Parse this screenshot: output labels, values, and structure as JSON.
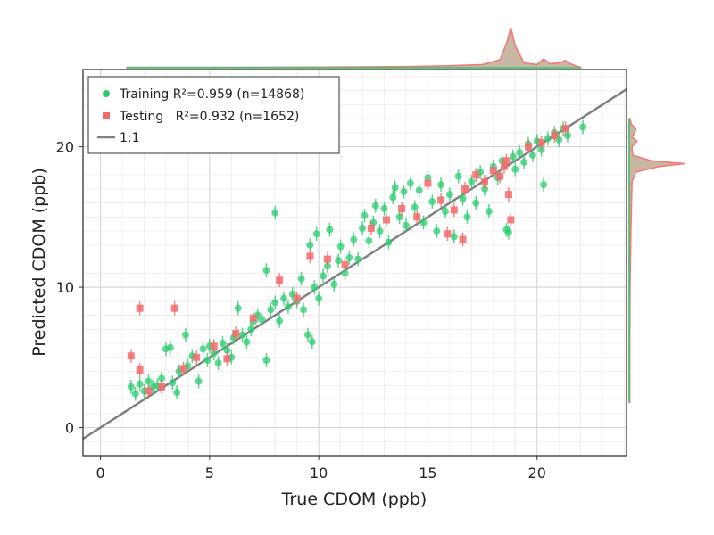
{
  "chart_data": {
    "type": "scatter",
    "xlabel": "True CDOM (ppb)",
    "ylabel": "Predicted CDOM (ppb)",
    "xlim": [
      -0.8,
      24.1
    ],
    "ylim": [
      -2.0,
      25.5
    ],
    "x_ticks": [
      0,
      5,
      10,
      15,
      20
    ],
    "y_ticks": [
      0,
      10,
      20
    ],
    "grid": true,
    "legend_position": "top-left",
    "colors": {
      "training": "#2ecc71",
      "testing": "#f26b6b",
      "identity": "#7f7f7f"
    },
    "legend": [
      {
        "label": "Training R²=0.959 (n=14868)",
        "marker": "circle",
        "color": "#2ecc71"
      },
      {
        "label": "Testing   R²=0.932 (n=1652)",
        "marker": "square",
        "color": "#f26b6b"
      },
      {
        "label": "1:1",
        "marker": "line",
        "color": "#7f7f7f"
      }
    ],
    "series": [
      {
        "name": "Training",
        "marker": "circle",
        "color": "#2ecc71",
        "points": [
          [
            1.4,
            2.9,
            0.5
          ],
          [
            1.6,
            2.4,
            0.5
          ],
          [
            1.8,
            3.1,
            0.5
          ],
          [
            2.0,
            2.6,
            0.5
          ],
          [
            2.2,
            3.3,
            0.5
          ],
          [
            2.4,
            2.9,
            0.5
          ],
          [
            2.6,
            3.0,
            0.5
          ],
          [
            2.8,
            3.5,
            0.5
          ],
          [
            3.0,
            5.6,
            0.5
          ],
          [
            3.2,
            5.7,
            0.5
          ],
          [
            3.3,
            3.2,
            0.5
          ],
          [
            3.5,
            2.5,
            0.5
          ],
          [
            3.6,
            4.0,
            0.5
          ],
          [
            3.9,
            6.6,
            0.5
          ],
          [
            4.0,
            4.4,
            0.5
          ],
          [
            4.2,
            5.1,
            0.5
          ],
          [
            4.5,
            3.3,
            0.5
          ],
          [
            4.7,
            5.6,
            0.5
          ],
          [
            4.9,
            4.8,
            0.5
          ],
          [
            5.0,
            5.8,
            0.5
          ],
          [
            5.2,
            5.3,
            0.5
          ],
          [
            5.4,
            4.6,
            0.5
          ],
          [
            5.6,
            6.0,
            0.5
          ],
          [
            5.8,
            5.5,
            0.5
          ],
          [
            6.0,
            5.0,
            0.5
          ],
          [
            6.1,
            6.4,
            0.5
          ],
          [
            6.3,
            8.5,
            0.5
          ],
          [
            6.5,
            6.6,
            0.5
          ],
          [
            6.7,
            6.1,
            0.5
          ],
          [
            6.9,
            7.0,
            0.5
          ],
          [
            7.0,
            7.5,
            0.5
          ],
          [
            7.2,
            8.0,
            0.5
          ],
          [
            7.4,
            7.7,
            0.5
          ],
          [
            7.6,
            4.8,
            0.5
          ],
          [
            7.6,
            11.2,
            0.5
          ],
          [
            7.8,
            8.4,
            0.5
          ],
          [
            8.0,
            8.9,
            0.5
          ],
          [
            8.0,
            15.3,
            0.5
          ],
          [
            8.2,
            7.6,
            0.5
          ],
          [
            8.4,
            9.2,
            0.5
          ],
          [
            8.6,
            8.6,
            0.5
          ],
          [
            8.8,
            9.5,
            0.5
          ],
          [
            9.0,
            9.0,
            0.5
          ],
          [
            9.2,
            10.6,
            0.5
          ],
          [
            9.3,
            8.4,
            0.5
          ],
          [
            9.5,
            6.6,
            0.5
          ],
          [
            9.6,
            13.0,
            0.5
          ],
          [
            9.7,
            6.1,
            0.5
          ],
          [
            9.8,
            10.0,
            0.5
          ],
          [
            9.9,
            13.8,
            0.5
          ],
          [
            10.0,
            9.2,
            0.5
          ],
          [
            10.2,
            10.8,
            0.5
          ],
          [
            10.4,
            11.5,
            0.5
          ],
          [
            10.5,
            14.1,
            0.5
          ],
          [
            10.7,
            10.2,
            0.5
          ],
          [
            10.9,
            11.9,
            0.5
          ],
          [
            11.0,
            12.9,
            0.5
          ],
          [
            11.2,
            11.0,
            0.5
          ],
          [
            11.4,
            12.1,
            0.5
          ],
          [
            11.6,
            13.4,
            0.5
          ],
          [
            11.8,
            12.0,
            0.5
          ],
          [
            12.0,
            14.2,
            0.5
          ],
          [
            12.1,
            15.1,
            0.5
          ],
          [
            12.3,
            13.3,
            0.5
          ],
          [
            12.5,
            14.6,
            0.5
          ],
          [
            12.6,
            15.8,
            0.5
          ],
          [
            12.8,
            14.0,
            0.5
          ],
          [
            13.0,
            15.6,
            0.5
          ],
          [
            13.2,
            13.2,
            0.5
          ],
          [
            13.4,
            16.4,
            0.5
          ],
          [
            13.5,
            17.1,
            0.5
          ],
          [
            13.7,
            15.0,
            0.5
          ],
          [
            13.9,
            16.8,
            0.5
          ],
          [
            14.0,
            14.4,
            0.5
          ],
          [
            14.2,
            17.4,
            0.5
          ],
          [
            14.4,
            15.7,
            0.5
          ],
          [
            14.6,
            16.9,
            0.5
          ],
          [
            14.8,
            14.6,
            0.5
          ],
          [
            15.0,
            17.8,
            0.5
          ],
          [
            15.2,
            16.1,
            0.5
          ],
          [
            15.4,
            14.0,
            0.5
          ],
          [
            15.6,
            17.3,
            0.5
          ],
          [
            15.8,
            15.4,
            0.5
          ],
          [
            16.0,
            16.6,
            0.5
          ],
          [
            16.2,
            13.6,
            0.5
          ],
          [
            16.4,
            17.9,
            0.5
          ],
          [
            16.6,
            16.3,
            0.5
          ],
          [
            16.8,
            15.0,
            0.5
          ],
          [
            17.0,
            17.5,
            0.5
          ],
          [
            17.2,
            16.0,
            0.5
          ],
          [
            17.4,
            18.2,
            0.5
          ],
          [
            17.6,
            17.0,
            0.5
          ],
          [
            17.8,
            15.4,
            0.5
          ],
          [
            18.0,
            18.6,
            0.5
          ],
          [
            18.2,
            17.8,
            0.5
          ],
          [
            18.4,
            19.0,
            0.5
          ],
          [
            18.6,
            14.1,
            0.5
          ],
          [
            18.7,
            13.9,
            0.5
          ],
          [
            18.9,
            19.3,
            0.5
          ],
          [
            19.0,
            18.4,
            0.5
          ],
          [
            19.2,
            19.6,
            0.5
          ],
          [
            19.4,
            18.9,
            0.5
          ],
          [
            19.6,
            20.2,
            0.5
          ],
          [
            19.8,
            19.4,
            0.5
          ],
          [
            20.0,
            20.4,
            0.5
          ],
          [
            20.2,
            19.8,
            0.5
          ],
          [
            20.3,
            17.3,
            0.5
          ],
          [
            20.5,
            20.6,
            0.5
          ],
          [
            20.8,
            21.0,
            0.5
          ],
          [
            21.0,
            20.5,
            0.5
          ],
          [
            21.2,
            21.3,
            0.5
          ],
          [
            21.4,
            20.8,
            0.5
          ],
          [
            22.1,
            21.4,
            0.5
          ]
        ]
      },
      {
        "name": "Testing",
        "marker": "square",
        "color": "#f26b6b",
        "points": [
          [
            1.4,
            5.1,
            0.5
          ],
          [
            1.8,
            4.1,
            0.5
          ],
          [
            1.8,
            8.5,
            0.5
          ],
          [
            2.2,
            2.6,
            0.5
          ],
          [
            2.8,
            2.9,
            0.5
          ],
          [
            3.4,
            8.5,
            0.5
          ],
          [
            3.8,
            4.2,
            0.5
          ],
          [
            4.4,
            5.0,
            0.5
          ],
          [
            5.2,
            5.8,
            0.5
          ],
          [
            5.8,
            4.9,
            0.5
          ],
          [
            6.2,
            6.7,
            0.5
          ],
          [
            7.0,
            7.8,
            0.5
          ],
          [
            8.2,
            10.5,
            0.5
          ],
          [
            9.0,
            9.2,
            0.5
          ],
          [
            9.6,
            12.2,
            0.5
          ],
          [
            10.4,
            12.0,
            0.5
          ],
          [
            11.2,
            11.6,
            0.5
          ],
          [
            12.4,
            14.2,
            0.5
          ],
          [
            13.1,
            14.8,
            0.5
          ],
          [
            13.8,
            15.6,
            0.5
          ],
          [
            14.5,
            15.0,
            0.5
          ],
          [
            15.0,
            17.4,
            0.5
          ],
          [
            15.6,
            16.2,
            0.5
          ],
          [
            16.2,
            15.5,
            0.5
          ],
          [
            16.7,
            17.0,
            0.5
          ],
          [
            17.2,
            18.0,
            0.5
          ],
          [
            17.6,
            17.5,
            0.5
          ],
          [
            18.0,
            18.3,
            0.5
          ],
          [
            18.3,
            17.9,
            0.5
          ],
          [
            18.5,
            18.6,
            0.5
          ],
          [
            18.6,
            19.0,
            0.5
          ],
          [
            18.7,
            16.6,
            0.5
          ],
          [
            18.8,
            14.8,
            0.5
          ],
          [
            19.6,
            20.0,
            0.5
          ],
          [
            20.2,
            20.3,
            0.5
          ],
          [
            20.8,
            20.8,
            0.5
          ],
          [
            21.3,
            21.3,
            0.5
          ],
          [
            16.6,
            13.4,
            0.5
          ],
          [
            15.9,
            13.8,
            0.5
          ]
        ]
      },
      {
        "name": "1:1",
        "type": "line",
        "color": "#7f7f7f",
        "x": [
          -0.8,
          24.1
        ],
        "y": [
          -0.8,
          24.1
        ]
      }
    ],
    "marginal_top": {
      "x": [
        1.2,
        5,
        10,
        14,
        16,
        17.5,
        18.3,
        18.6,
        18.8,
        19.0,
        19.4,
        20.0,
        20.3,
        20.6,
        21.0,
        21.3,
        21.6,
        22.0
      ],
      "density": [
        0.01,
        0.01,
        0.015,
        0.03,
        0.05,
        0.08,
        0.2,
        0.6,
        1.0,
        0.55,
        0.12,
        0.08,
        0.22,
        0.1,
        0.12,
        0.18,
        0.08,
        0.01
      ]
    },
    "marginal_right": {
      "y": [
        1.8,
        6,
        10,
        14,
        17.5,
        18.2,
        18.6,
        18.8,
        19.0,
        19.4,
        20.0,
        20.4,
        20.7,
        21.0,
        21.3,
        21.6,
        22.0
      ],
      "density": [
        0.01,
        0.01,
        0.015,
        0.03,
        0.05,
        0.12,
        0.55,
        1.0,
        0.4,
        0.06,
        0.05,
        0.14,
        0.05,
        0.1,
        0.12,
        0.04,
        0.01
      ]
    }
  }
}
